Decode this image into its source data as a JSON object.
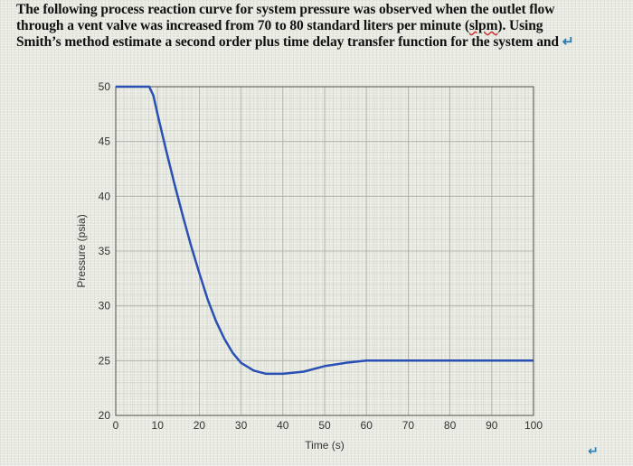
{
  "question": {
    "line1": "The following process reaction curve for system pressure was observed when the outlet flow",
    "line2a": "through a vent valve was increased from 70 to 80 standard liters per minute (",
    "line2_spell": "slpm",
    "line2b": "). Using",
    "line3": "Smith’s method estimate a second order plus time delay transfer function for the system and",
    "return_mark": "↵"
  },
  "bottom_return_mark": "↵",
  "chart_data": {
    "type": "line",
    "title": "",
    "xlabel": "Time (s)",
    "ylabel": "Pressure (psia)",
    "xlim": [
      0,
      100
    ],
    "ylim": [
      20,
      50
    ],
    "xticks": [
      0,
      10,
      20,
      30,
      40,
      50,
      60,
      70,
      80,
      90,
      100
    ],
    "yticks": [
      20,
      25,
      30,
      35,
      40,
      45,
      50
    ],
    "grid": true,
    "line_color": "#2a4fb5",
    "series": [
      {
        "name": "Pressure",
        "x": [
          0,
          5,
          8,
          9,
          10,
          12,
          14,
          16,
          18,
          20,
          22,
          24,
          26,
          28,
          30,
          33,
          36,
          40,
          45,
          50,
          55,
          60,
          65,
          70,
          80,
          90,
          100
        ],
        "values": [
          50,
          50,
          50,
          49.2,
          47.5,
          44.3,
          41.2,
          38.3,
          35.5,
          33.0,
          30.6,
          28.6,
          27.0,
          25.7,
          24.8,
          24.1,
          23.8,
          23.8,
          24.0,
          24.5,
          24.8,
          25.0,
          25.0,
          25.0,
          25.0,
          25.0,
          25.0
        ]
      }
    ]
  }
}
